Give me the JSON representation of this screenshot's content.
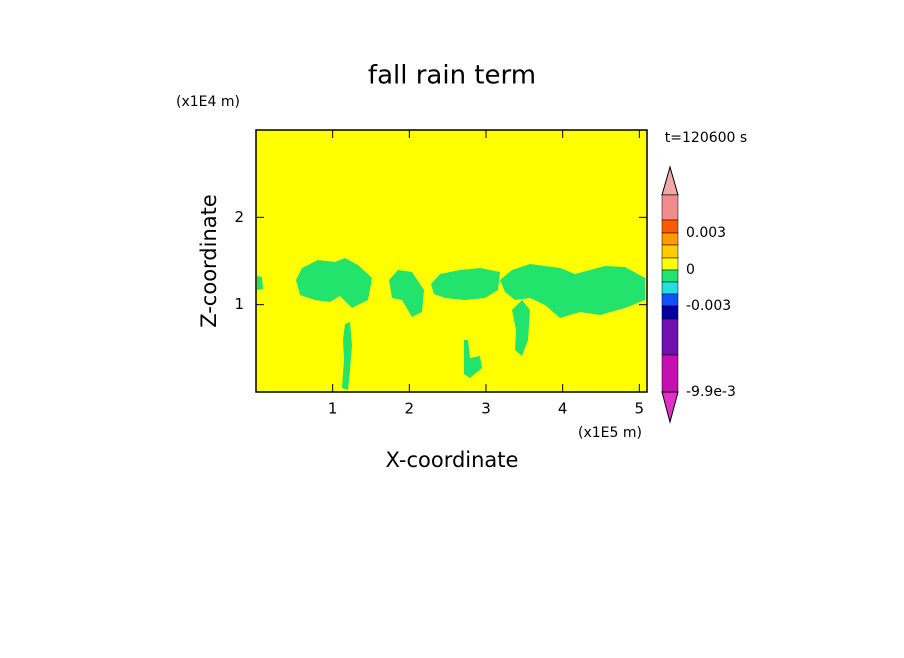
{
  "chart_data": {
    "type": "contour",
    "title": "fall rain term",
    "x_label": "X-coordinate",
    "y_label": "Z-coordinate",
    "x_unit": "(x1E5 m)",
    "y_unit": "(x1E4 m)",
    "annotation": "t=120600 s",
    "xlim": [
      0,
      5.1
    ],
    "ylim": [
      0,
      3
    ],
    "xticks": [
      1,
      2,
      3,
      4,
      5
    ],
    "yticks": [
      1,
      2
    ],
    "background_color": "#ffff00",
    "region_color": "#22e46c",
    "colorbar": {
      "colors": [
        "#f0a8a8",
        "#f08c8c",
        "#ff5a00",
        "#ff9a00",
        "#ffcc00",
        "#ffff00",
        "#20e46c",
        "#20e0e0",
        "#1050ff",
        "#0000a0",
        "#7010b0",
        "#c410b0",
        "#e030c8"
      ],
      "labels": [
        0.003,
        0,
        -0.003,
        {
          "value": -0.0099,
          "label": "-9.9e-3"
        }
      ]
    }
  }
}
